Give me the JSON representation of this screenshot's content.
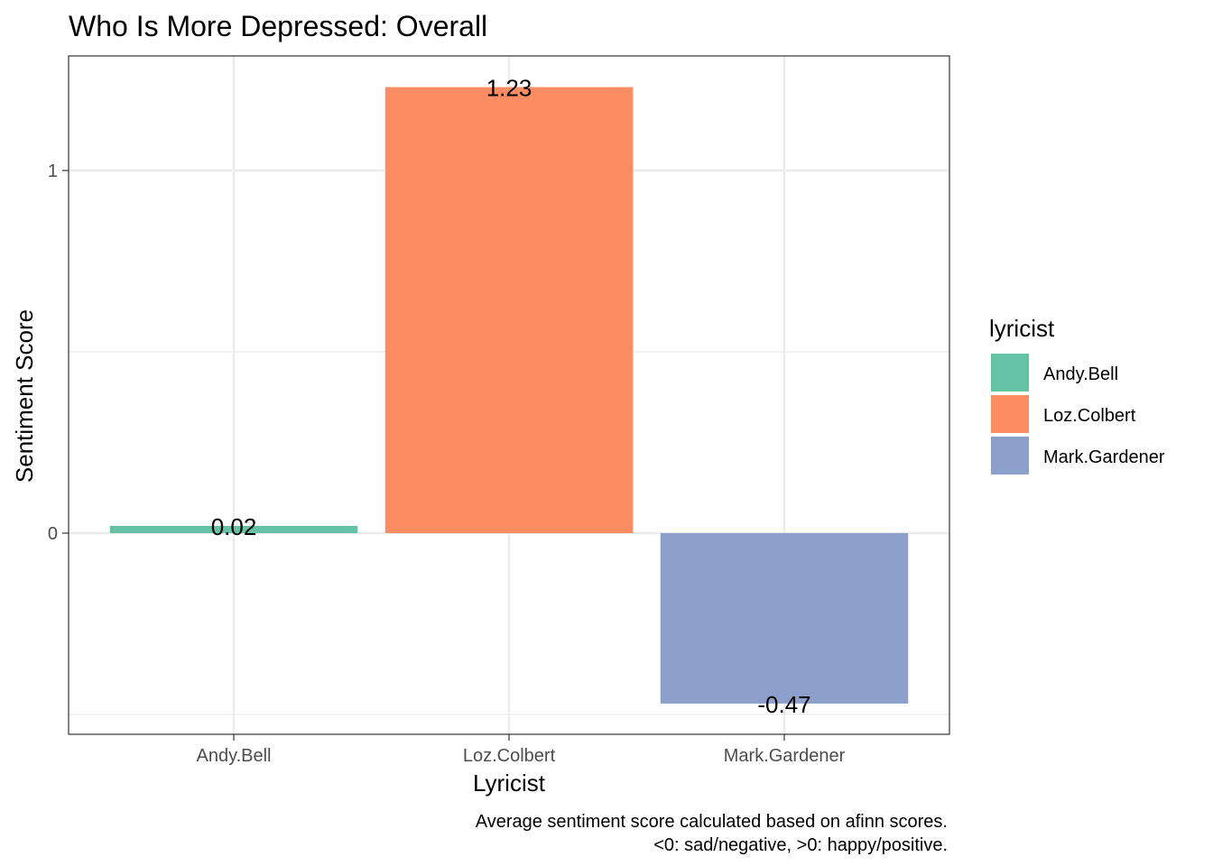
{
  "chart_data": {
    "type": "bar",
    "title": "Who Is More Depressed: Overall",
    "xlabel": "Lyricist",
    "ylabel": "Sentiment Score",
    "categories": [
      "Andy.Bell",
      "Loz.Colbert",
      "Mark.Gardener"
    ],
    "values": [
      0.02,
      1.23,
      -0.47
    ],
    "data_labels": [
      "0.02",
      "1.23",
      "-0.47"
    ],
    "colors": [
      "#66c2a5",
      "#fc8d62",
      "#8da0cb"
    ],
    "ylim": [
      -0.55,
      1.31
    ],
    "yticks": [
      0,
      1
    ],
    "ytick_labels": [
      "0",
      "1"
    ],
    "grid": true,
    "legend": {
      "title": "lyricist",
      "placement": "right",
      "entries": [
        "Andy.Bell",
        "Loz.Colbert",
        "Mark.Gardener"
      ]
    },
    "caption": [
      "Average sentiment score calculated based on afinn scores.",
      "<0: sad/negative, >0: happy/positive."
    ]
  }
}
